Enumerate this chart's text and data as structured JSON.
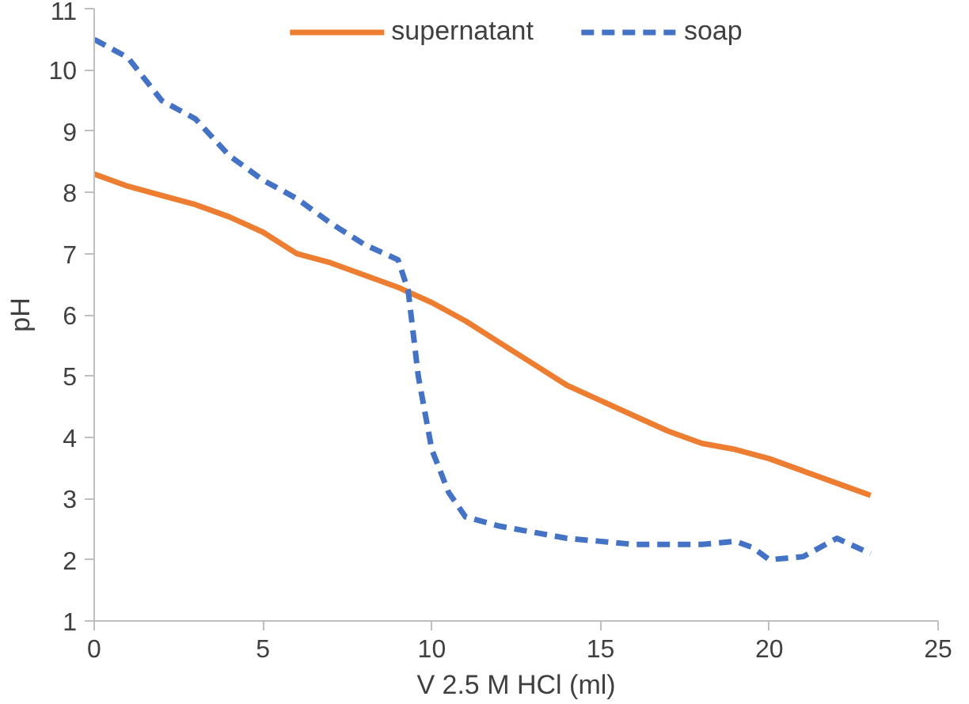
{
  "chart_data": {
    "type": "line",
    "xlabel": "V 2.5 M HCl (ml)",
    "ylabel": "pH",
    "xlim": [
      0,
      25
    ],
    "xticks": [
      0,
      5,
      10,
      15,
      20,
      25
    ],
    "ylim": [
      1,
      11
    ],
    "yticks": [
      1,
      2,
      3,
      4,
      5,
      6,
      7,
      8,
      9,
      10,
      11
    ],
    "grid": false,
    "legend": "top",
    "series": [
      {
        "name": "supernatant",
        "color": "#ed7d31",
        "line_style": "solid",
        "x": [
          0,
          1,
          2,
          3,
          4,
          5,
          6,
          7,
          8,
          9,
          10,
          11,
          12,
          13,
          14,
          15,
          16,
          17,
          18,
          19,
          20,
          21,
          22,
          23
        ],
        "values": [
          8.3,
          8.1,
          7.95,
          7.8,
          7.6,
          7.35,
          7.0,
          6.85,
          6.65,
          6.45,
          6.2,
          5.9,
          5.55,
          5.2,
          4.85,
          4.6,
          4.35,
          4.1,
          3.9,
          3.8,
          3.65,
          3.45,
          3.25,
          3.05
        ]
      },
      {
        "name": "soap",
        "color": "#4472c4",
        "line_style": "dashed",
        "x": [
          0,
          1,
          2,
          3,
          4,
          5,
          6,
          7,
          8,
          9,
          9.3,
          9.6,
          10,
          10.5,
          11,
          12,
          13,
          14,
          15,
          16,
          17,
          18,
          19,
          19.5,
          20,
          21,
          22,
          23
        ],
        "values": [
          10.5,
          10.2,
          9.5,
          9.2,
          8.6,
          8.2,
          7.9,
          7.5,
          7.15,
          6.9,
          6.4,
          5.0,
          3.8,
          3.1,
          2.7,
          2.55,
          2.45,
          2.35,
          2.3,
          2.25,
          2.25,
          2.25,
          2.3,
          2.2,
          2.0,
          2.05,
          2.35,
          2.1
        ]
      }
    ]
  }
}
